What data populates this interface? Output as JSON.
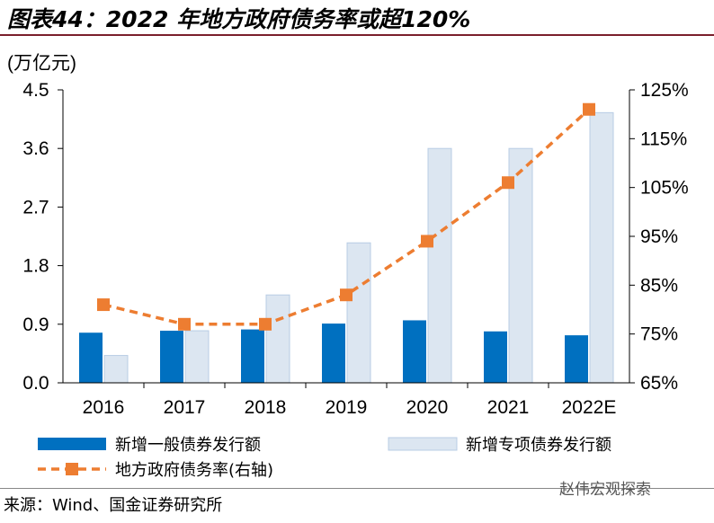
{
  "title": "图表44：2022 年地方政府债务率或超120%",
  "source": "来源：Wind、国金证券研究所",
  "watermark": "赵伟宏观探索",
  "colors": {
    "general_bond": "#0070C0",
    "special_bond": "#DCE6F1",
    "special_bond_edge": "#B8CCE4",
    "debt_ratio": "#ED7D31",
    "rule": "#7a1f2b"
  },
  "chart_data": {
    "type": "bar",
    "categories": [
      "2016",
      "2017",
      "2018",
      "2019",
      "2020",
      "2021",
      "2022E"
    ],
    "ylabel": "(万亿元)",
    "ylim": [
      0,
      4.5
    ],
    "yticks": [
      "0.0",
      "0.9",
      "1.8",
      "2.7",
      "3.6",
      "4.5"
    ],
    "y2lim": [
      65,
      125
    ],
    "y2ticks": [
      "65%",
      "75%",
      "85%",
      "95%",
      "105%",
      "115%",
      "125%"
    ],
    "grid": false,
    "legend": "bottom",
    "series": [
      {
        "name": "新增一般债券发行额",
        "type": "bar",
        "axis": "left",
        "values": [
          0.77,
          0.8,
          0.82,
          0.91,
          0.96,
          0.79,
          0.73
        ]
      },
      {
        "name": "新增专项债券发行额",
        "type": "bar",
        "axis": "left",
        "values": [
          0.42,
          0.8,
          1.35,
          2.15,
          3.6,
          3.6,
          4.15
        ]
      },
      {
        "name": "地方政府债务率(右轴)",
        "type": "line",
        "axis": "right",
        "values": [
          81.0,
          77.0,
          77.0,
          83.0,
          94.0,
          106.0,
          121.0
        ]
      }
    ]
  }
}
